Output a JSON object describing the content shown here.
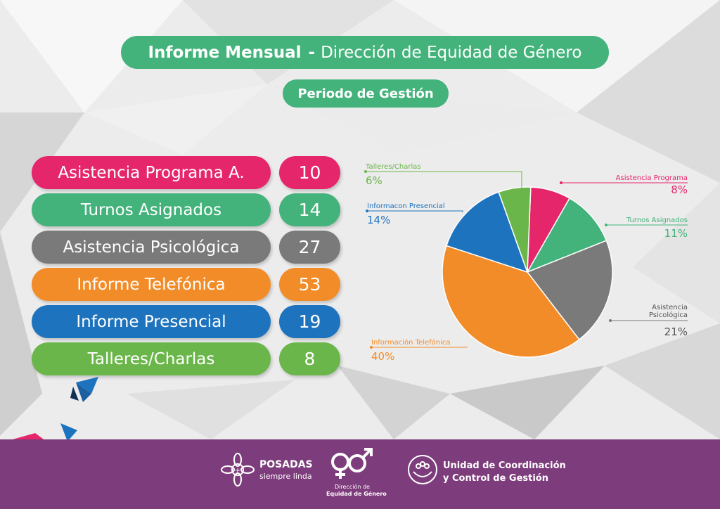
{
  "header": {
    "title_bold": "Informe Mensual",
    "title_dash": "-",
    "title_rest": "Dirección de Equidad de Género",
    "period": "Periodo de Gestión"
  },
  "rows": [
    {
      "label": "Asistencia Programa A.",
      "value": "10",
      "color": "#e6266b"
    },
    {
      "label": "Turnos Asignados",
      "value": "14",
      "color": "#43b37b"
    },
    {
      "label": "Asistencia Psicológica",
      "value": "27",
      "color": "#7a7a7a"
    },
    {
      "label": "Informe Telefónica",
      "value": "53",
      "color": "#f28c28"
    },
    {
      "label": "Informe Presencial",
      "value": "19",
      "color": "#1e73be"
    },
    {
      "label": "Talleres/Charlas",
      "value": "8",
      "color": "#6bb64a"
    }
  ],
  "chart_data": {
    "type": "pie",
    "slices": [
      {
        "label": "Asistencia Programa",
        "value": 10,
        "percent_label": "8%",
        "color": "#e6266b"
      },
      {
        "label": "Turnos Asignados",
        "value": 14,
        "percent_label": "11%",
        "color": "#43b37b"
      },
      {
        "label": "Asistencia Psicológica",
        "value": 27,
        "percent_label": "21%",
        "color": "#7a7a7a"
      },
      {
        "label": "Información Telefónica",
        "value": 53,
        "percent_label": "40%",
        "color": "#f28c28"
      },
      {
        "label": "Informacon Presencial",
        "value": 19,
        "percent_label": "14%",
        "color": "#1e73be"
      },
      {
        "label": "Talleres/Charlas",
        "value": 8,
        "percent_label": "6%",
        "color": "#6bb64a"
      }
    ]
  },
  "footer": {
    "posadas_name": "POSADAS",
    "posadas_tagline": "siempre linda",
    "direccion_line1": "Dirección de",
    "direccion_line2": "Equidad de Género",
    "unidad_line1": "Unidad de Coordinación",
    "unidad_line2": "y Control de Gestión"
  }
}
